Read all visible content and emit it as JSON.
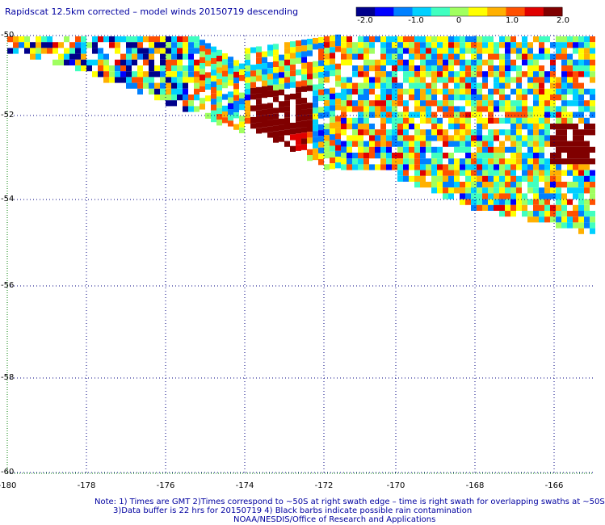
{
  "title": "Rapidscat 12.5km corrected – model winds 20150719 descending",
  "colorbar": {
    "ticks": [
      "-2.0",
      "-1.0",
      "0",
      "1.0",
      "2.0"
    ],
    "tick_values": [
      -2,
      -1,
      0,
      1,
      2
    ],
    "colors": [
      "#00008b",
      "#0000ff",
      "#0080ff",
      "#00d0ff",
      "#40ffc0",
      "#a0ff60",
      "#ffff00",
      "#ffb000",
      "#ff5000",
      "#e00000",
      "#800000"
    ]
  },
  "map": {
    "lat_labels": [
      "-50",
      "-52",
      "-54",
      "-56",
      "-58",
      "-60"
    ],
    "lat_values": [
      -50,
      -52,
      -54,
      -56,
      -58,
      -60
    ],
    "lon_labels": [
      "-180",
      "-178",
      "-176",
      "-174",
      "-172",
      "-170",
      "-168",
      "-166"
    ],
    "lon_values": [
      -180,
      -178,
      -176,
      -174,
      -172,
      -170,
      -168,
      -166
    ],
    "lon_range": [
      -180,
      -165
    ],
    "lat_range": [
      -60,
      -50
    ],
    "grid": true,
    "grid_color": "#000080"
  },
  "notes": {
    "line1": "Note: 1) Times are GMT 2)Times correspond to ~50S at right swath edge – time is right swath for overlapping swaths at ~50S",
    "line2": "3)Data buffer is 22 hrs for 20150719 4) Black barbs indicate possible rain contamination",
    "line3": "NOAA/NESDIS/Office of Research and Applications"
  }
}
